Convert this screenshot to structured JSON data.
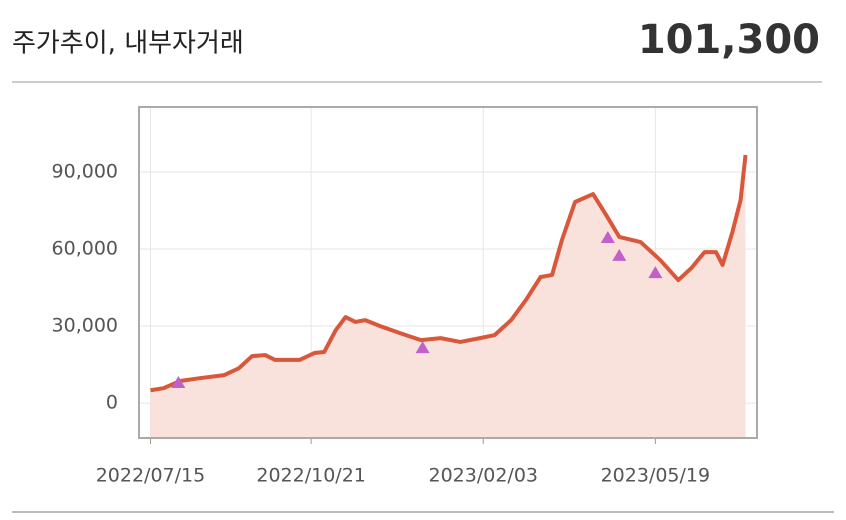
{
  "header": {
    "title": "주가추이, 내부자거래",
    "price": "101,300"
  },
  "chart_data": {
    "type": "line",
    "x": [
      "2022/07/15",
      "2022/07/23",
      "2022/08/02",
      "2022/08/14",
      "2022/08/29",
      "2022/09/07",
      "2022/09/15",
      "2022/09/23",
      "2022/09/29",
      "2022/10/14",
      "2022/10/23",
      "2022/10/29",
      "2022/11/05",
      "2022/11/11",
      "2022/11/17",
      "2022/11/23",
      "2022/12/02",
      "2022/12/14",
      "2022/12/27",
      "2023/01/08",
      "2023/01/20",
      "2023/02/01",
      "2023/02/10",
      "2023/02/20",
      "2023/03/01",
      "2023/03/10",
      "2023/03/17",
      "2023/03/23",
      "2023/03/31",
      "2023/04/11",
      "2023/04/19",
      "2023/04/27",
      "2023/05/10",
      "2023/05/22",
      "2023/06/02",
      "2023/06/10",
      "2023/06/18",
      "2023/06/25",
      "2023/06/29",
      "2023/07/05",
      "2023/07/10",
      "2023/07/13"
    ],
    "values": [
      5000,
      5800,
      8600,
      9700,
      10900,
      13600,
      18300,
      18700,
      16800,
      16800,
      19500,
      19900,
      28400,
      33500,
      31600,
      32300,
      30000,
      27300,
      24500,
      25300,
      23800,
      25300,
      26500,
      32300,
      40100,
      49100,
      49900,
      63500,
      78300,
      81400,
      73200,
      64700,
      62700,
      55700,
      47900,
      52600,
      58800,
      58800,
      53800,
      66600,
      79100,
      96600
    ],
    "color": "#d9573a",
    "area_color": "#f9e1dc",
    "markers": {
      "x": [
        "2022/08/01",
        "2022/12/28",
        "2023/04/20",
        "2023/04/27",
        "2023/05/19"
      ],
      "values": [
        7800,
        21400,
        64300,
        57300,
        50600
      ],
      "color": "#c060c8"
    },
    "xlim": [
      "2022/07/08",
      "2023/07/20"
    ],
    "xticks": [
      "2022/07/15",
      "2022/10/21",
      "2023/02/03",
      "2023/05/19"
    ],
    "ylim": [
      -13600,
      115300
    ],
    "yticks": [
      0,
      {
        "value": 30000,
        "label": "30,000"
      },
      {
        "value": 60000,
        "label": "60,000"
      },
      {
        "value": 90000,
        "label": "90,000"
      }
    ],
    "grid": true
  }
}
